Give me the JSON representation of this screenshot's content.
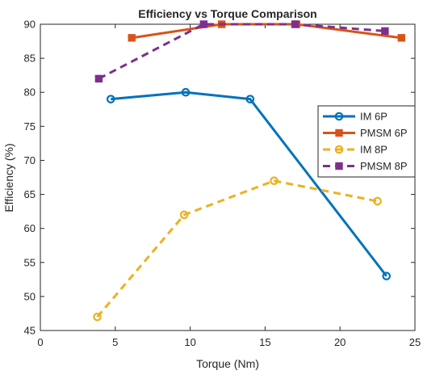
{
  "chart_data": {
    "type": "line",
    "title": "Efficiency vs Torque Comparison",
    "xlabel": "Torque (Nm)",
    "ylabel": "Efficiency (%)",
    "xlim": [
      0,
      25
    ],
    "ylim": [
      45,
      90
    ],
    "xticks": [
      0,
      5,
      10,
      15,
      20,
      25
    ],
    "yticks": [
      45,
      50,
      55,
      60,
      65,
      70,
      75,
      80,
      85,
      90
    ],
    "grid": false,
    "legend_position": "right",
    "series": [
      {
        "name": "IM 6P",
        "color": "#0072BD",
        "line": "solid",
        "marker": "circle",
        "x": [
          4.7,
          9.7,
          14.0,
          23.1
        ],
        "y": [
          79,
          80,
          79,
          53
        ]
      },
      {
        "name": "PMSM 6P",
        "color": "#D95319",
        "line": "solid",
        "marker": "square",
        "x": [
          6.1,
          12.1,
          17.1,
          24.1
        ],
        "y": [
          88,
          90,
          90,
          88
        ]
      },
      {
        "name": "IM 8P",
        "color": "#EDB120",
        "line": "dashed",
        "marker": "circle",
        "x": [
          3.8,
          9.6,
          15.6,
          22.5
        ],
        "y": [
          47,
          62,
          67,
          64
        ]
      },
      {
        "name": "PMSM 8P",
        "color": "#7E2F8E",
        "line": "dashed",
        "marker": "square",
        "x": [
          3.9,
          10.9,
          17.0,
          23.0
        ],
        "y": [
          82,
          90,
          90,
          89
        ]
      }
    ]
  }
}
